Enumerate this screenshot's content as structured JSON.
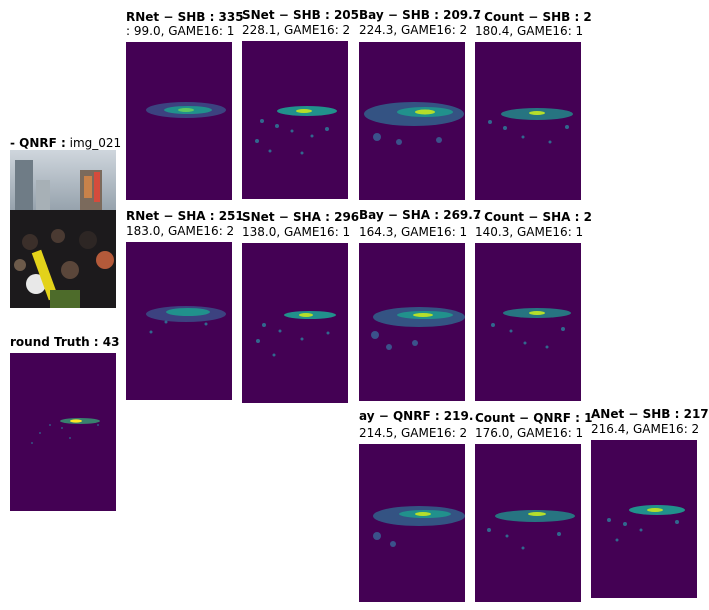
{
  "panels": {
    "input": {
      "title_bold": "- QNRF :",
      "title_rest": " img_021"
    },
    "gt": {
      "title_bold": "round Truth : 43"
    },
    "csrnet_shb": {
      "title": "RNet − SHB : 335",
      "sub": ": 99.0, GAME16: 1"
    },
    "mcnn_shb": {
      "title": "SNet − SHB : 205",
      "sub": "228.1, GAME16: 2"
    },
    "bay_shb": {
      "title": "Bay − SHB : 209.7",
      "sub": "224.3, GAME16: 2"
    },
    "count_shb": {
      "title": "- Count − SHB : 2",
      "sub": "180.4, GAME16: 1"
    },
    "csrnet_sha": {
      "title": "RNet − SHA : 251",
      "sub": "183.0, GAME16: 2"
    },
    "mcnn_sha": {
      "title": "SNet − SHA : 296",
      "sub": "138.0, GAME16: 1"
    },
    "bay_sha": {
      "title": "Bay − SHA : 269.7",
      "sub": "164.3, GAME16: 1"
    },
    "count_sha": {
      "title": "- Count − SHA : 2",
      "sub": "140.3, GAME16: 1"
    },
    "bay_qnrf": {
      "title": "ay − QNRF : 219.",
      "sub": "214.5, GAME16: 2"
    },
    "count_qnrf": {
      "title": "Count − QNRF : 1",
      "sub": "176.0, GAME16: 1"
    },
    "canet_shb": {
      "title": "ANet − SHB : 217",
      "sub": "216.4, GAME16: 2"
    }
  },
  "colors": {
    "density_bg": "#440154",
    "density_mid": "#31688e",
    "density_hi": "#35b779",
    "density_peak": "#fde725"
  }
}
